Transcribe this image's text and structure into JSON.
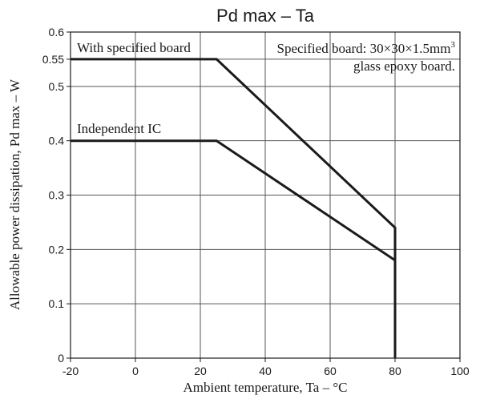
{
  "chart_data": {
    "type": "line",
    "title": "Pd max – Ta",
    "xlabel": "Ambient temperature, Ta – °C",
    "ylabel": "Allowable power dissipation, Pd max – W",
    "xlim": [
      -20,
      100
    ],
    "ylim": [
      0,
      0.6
    ],
    "x_ticks": [
      -20,
      0,
      20,
      40,
      60,
      80,
      100
    ],
    "x_tick_labels": [
      "-20",
      "0",
      "20",
      "40",
      "60",
      "80",
      "100"
    ],
    "y_ticks": [
      0,
      0.1,
      0.2,
      0.3,
      0.4,
      0.5,
      0.55,
      0.6
    ],
    "y_tick_labels": [
      "0",
      "0.1",
      "0.2",
      "0.3",
      "0.4",
      "0.5",
      "0.55",
      "0.6"
    ],
    "grid": true,
    "series": [
      {
        "name": "With specified board",
        "x": [
          -20,
          25,
          80,
          80
        ],
        "y": [
          0.55,
          0.55,
          0.24,
          0
        ]
      },
      {
        "name": "Independent IC",
        "x": [
          -20,
          25,
          80,
          80
        ],
        "y": [
          0.4,
          0.4,
          0.18,
          0
        ]
      }
    ],
    "annotations": {
      "board_line1": "Specified board: 30×30×1.5mm",
      "board_sup": "3",
      "board_line2": "glass epoxy board."
    }
  }
}
